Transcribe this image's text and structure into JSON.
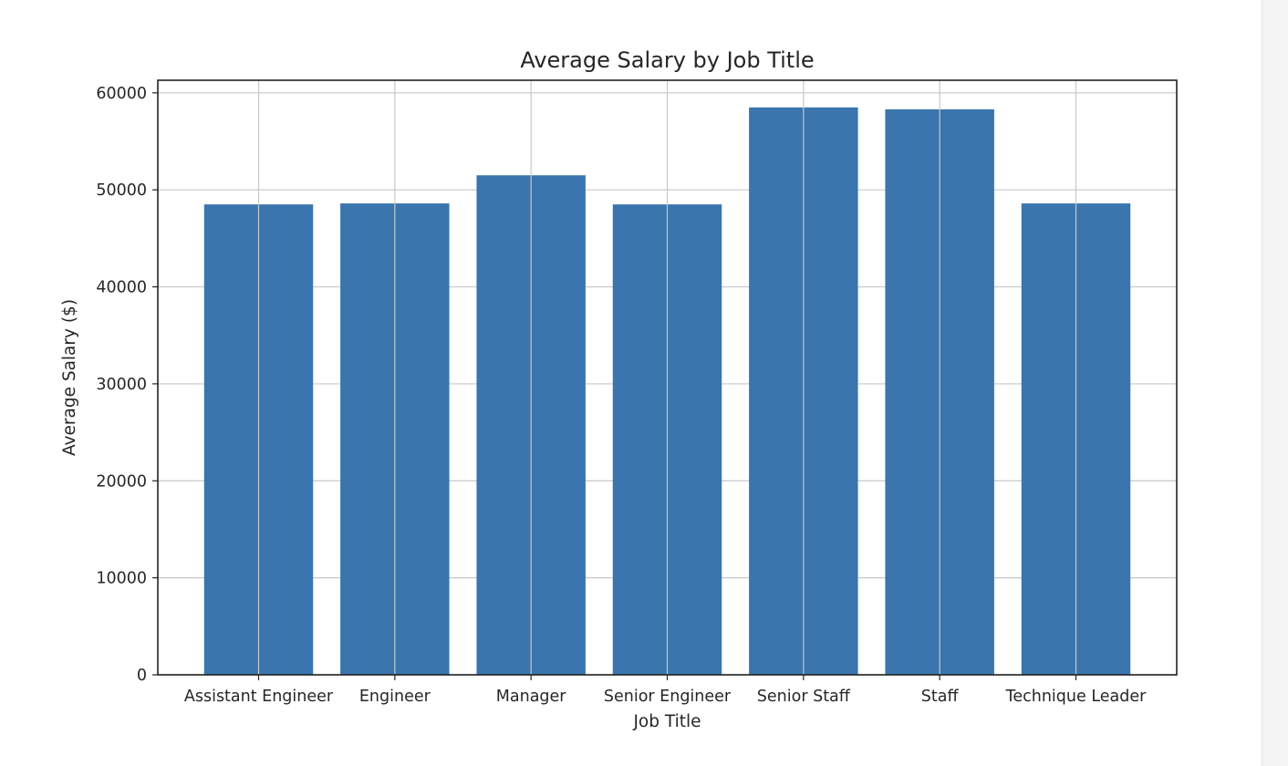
{
  "colors": {
    "bar": "#3a75ae",
    "grid": "#c8c8c8",
    "axis": "#222222",
    "background": "#ffffff"
  },
  "chart_data": {
    "type": "bar",
    "title": "Average Salary by Job Title",
    "xlabel": "Job Title",
    "ylabel": "Average Salary ($)",
    "categories": [
      "Assistant Engineer",
      "Engineer",
      "Manager",
      "Senior Engineer",
      "Senior Staff",
      "Staff",
      "Technique Leader"
    ],
    "values": [
      48500,
      48600,
      51500,
      48500,
      58500,
      58300,
      48600
    ],
    "ylim": [
      0,
      61300
    ],
    "yticks": [
      0,
      10000,
      20000,
      30000,
      40000,
      50000,
      60000
    ],
    "ytick_labels": [
      "0",
      "10000",
      "20000",
      "30000",
      "40000",
      "50000",
      "60000"
    ],
    "grid": true,
    "legend": "none"
  }
}
